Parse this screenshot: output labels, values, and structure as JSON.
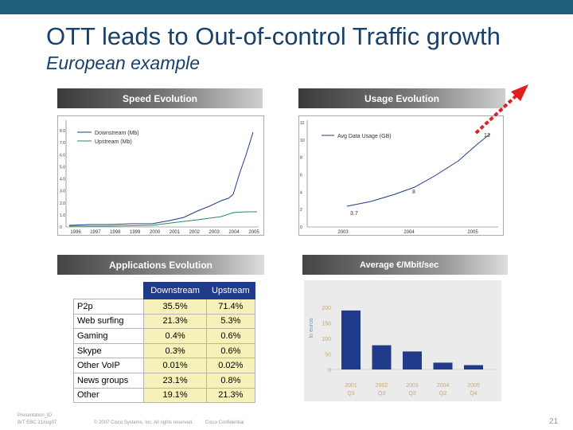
{
  "slide": {
    "title": "OTT leads to Out-of-control Traffic growth",
    "subtitle": "European example"
  },
  "headers": {
    "speed": "Speed Evolution",
    "usage": "Usage Evolution",
    "applications": "Applications Evolution",
    "average": "Average €/Mbit/sec"
  },
  "speed_chart": {
    "legend": [
      "Downstream (Mb)",
      "Upstream (Mb)"
    ],
    "y_ticks": [
      "8.0",
      "7.0",
      "6.0",
      "5.0",
      "4.0",
      "3.0",
      "2.0",
      "1.0",
      "0"
    ],
    "x_ticks": [
      "1996",
      "1997",
      "1998",
      "1999",
      "2000",
      "2001",
      "2002",
      "2003",
      "2004",
      "2005"
    ]
  },
  "usage_chart": {
    "legend": "Avg Data Usage (GB)",
    "y_ticks": [
      "12",
      "10",
      "8",
      "6",
      "4",
      "2",
      "0"
    ],
    "x_ticks": [
      "2003",
      "2004",
      "2005"
    ],
    "labels": [
      "3.7",
      "8",
      "13"
    ]
  },
  "applications_table": {
    "columns": [
      "Downstream",
      "Upstream"
    ],
    "rows": [
      {
        "name": "P2p",
        "down": "35.5%",
        "up": "71.4%"
      },
      {
        "name": "Web surfing",
        "down": "21.3%",
        "up": "5.3%"
      },
      {
        "name": "Gaming",
        "down": "0.4%",
        "up": "0.6%"
      },
      {
        "name": "Skype",
        "down": "0.3%",
        "up": "0.6%"
      },
      {
        "name": "Other VoIP",
        "down": "0.01%",
        "up": "0.02%"
      },
      {
        "name": "News groups",
        "down": "23.1%",
        "up": "0.8%"
      },
      {
        "name": "Other",
        "down": "19.1%",
        "up": "21.3%"
      }
    ]
  },
  "chart_data": {
    "type": "bar",
    "title": "Average €/Mbit/sec",
    "ylabel": "In euros",
    "ylim": [
      0,
      200
    ],
    "y_ticks": [
      "200",
      "150",
      "100",
      "50",
      "0"
    ],
    "categories": [
      "2001 Q3",
      "2002 Q3",
      "2003 Q3",
      "2004 Q2",
      "2005 Q4"
    ],
    "category_lines": [
      [
        "2001",
        "Q3"
      ],
      [
        "2002",
        "Q3"
      ],
      [
        "2003",
        "Q3"
      ],
      [
        "2004",
        "Q2"
      ],
      [
        "2005",
        "Q4"
      ]
    ],
    "values": [
      190,
      78,
      58,
      22,
      14
    ],
    "color": "#1f3b8a"
  },
  "footer": {
    "presentation": "Presentation_ID",
    "session": "BrT EBC 21Aug07",
    "copyright": "© 2007 Cisco Systems, Inc. All rights reserved.",
    "confidential": "Cisco Confidential",
    "page": "21"
  },
  "colors": {
    "title": "#17406b",
    "bar": "#1f3b8a",
    "arrow": "#e02020"
  }
}
